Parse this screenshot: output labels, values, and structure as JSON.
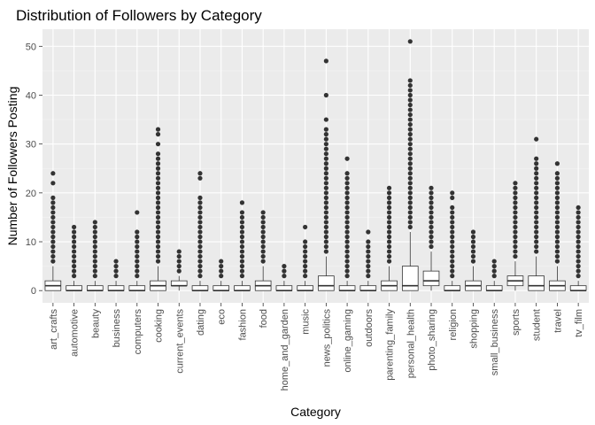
{
  "chart_data": {
    "type": "boxplot",
    "title": "Distribution of Followers by Category",
    "xlabel": "Category",
    "ylabel": "Number of Followers Posting",
    "ylim": [
      -2.5,
      53.5
    ],
    "yticks": [
      0,
      10,
      20,
      30,
      40,
      50
    ],
    "grid": true,
    "colors": {
      "panel": "#ebebeb",
      "grid_major": "#ffffff",
      "grid_minor": "#f5f5f5",
      "box_fill": "#ffffff",
      "box_stroke": "#333333",
      "outlier": "#333333"
    },
    "categories": [
      {
        "name": "art_crafts",
        "q1": 0,
        "median": 1,
        "q3": 2,
        "whisker_low": 0,
        "whisker_high": 5,
        "outliers": [
          6,
          7,
          8,
          9,
          10,
          11,
          12,
          13,
          14,
          15,
          16,
          17,
          18,
          19,
          22,
          24
        ]
      },
      {
        "name": "automotive",
        "q1": 0,
        "median": 0,
        "q3": 1,
        "whisker_low": 0,
        "whisker_high": 2,
        "outliers": [
          3,
          4,
          5,
          6,
          7,
          8,
          9,
          10,
          11,
          12,
          13
        ]
      },
      {
        "name": "beauty",
        "q1": 0,
        "median": 0,
        "q3": 1,
        "whisker_low": 0,
        "whisker_high": 2,
        "outliers": [
          3,
          4,
          5,
          6,
          7,
          8,
          9,
          10,
          11,
          12,
          13,
          14
        ]
      },
      {
        "name": "business",
        "q1": 0,
        "median": 0,
        "q3": 1,
        "whisker_low": 0,
        "whisker_high": 2,
        "outliers": [
          3,
          4,
          5,
          6
        ]
      },
      {
        "name": "computers",
        "q1": 0,
        "median": 0,
        "q3": 1,
        "whisker_low": 0,
        "whisker_high": 2,
        "outliers": [
          3,
          4,
          5,
          6,
          7,
          8,
          9,
          10,
          11,
          12,
          16
        ]
      },
      {
        "name": "cooking",
        "q1": 0,
        "median": 1,
        "q3": 2,
        "whisker_low": 0,
        "whisker_high": 5,
        "outliers": [
          6,
          7,
          8,
          9,
          10,
          11,
          12,
          13,
          14,
          15,
          16,
          17,
          18,
          19,
          20,
          21,
          22,
          23,
          24,
          25,
          26,
          27,
          28,
          30,
          32,
          33
        ]
      },
      {
        "name": "current_events",
        "q1": 1,
        "median": 1,
        "q3": 2,
        "whisker_low": 0,
        "whisker_high": 3,
        "outliers": [
          4,
          5,
          6,
          7,
          8
        ]
      },
      {
        "name": "dating",
        "q1": 0,
        "median": 0,
        "q3": 1,
        "whisker_low": 0,
        "whisker_high": 2,
        "outliers": [
          3,
          4,
          5,
          6,
          7,
          8,
          9,
          10,
          11,
          12,
          13,
          14,
          15,
          16,
          17,
          18,
          19,
          23,
          24
        ]
      },
      {
        "name": "eco",
        "q1": 0,
        "median": 0,
        "q3": 1,
        "whisker_low": 0,
        "whisker_high": 2,
        "outliers": [
          3,
          4,
          5,
          6
        ]
      },
      {
        "name": "fashion",
        "q1": 0,
        "median": 0,
        "q3": 1,
        "whisker_low": 0,
        "whisker_high": 2,
        "outliers": [
          3,
          4,
          5,
          6,
          7,
          8,
          9,
          10,
          11,
          12,
          13,
          14,
          15,
          16,
          18
        ]
      },
      {
        "name": "food",
        "q1": 0,
        "median": 1,
        "q3": 2,
        "whisker_low": 0,
        "whisker_high": 5,
        "outliers": [
          6,
          7,
          8,
          9,
          10,
          11,
          12,
          13,
          14,
          15,
          16
        ]
      },
      {
        "name": "home_and_garden",
        "q1": 0,
        "median": 0,
        "q3": 1,
        "whisker_low": 0,
        "whisker_high": 2,
        "outliers": [
          3,
          4,
          5
        ]
      },
      {
        "name": "music",
        "q1": 0,
        "median": 0,
        "q3": 1,
        "whisker_low": 0,
        "whisker_high": 2,
        "outliers": [
          3,
          4,
          5,
          6,
          7,
          8,
          9,
          10,
          13
        ]
      },
      {
        "name": "news_politics",
        "q1": 0,
        "median": 1,
        "q3": 3,
        "whisker_low": 0,
        "whisker_high": 7,
        "outliers": [
          8,
          9,
          10,
          11,
          12,
          13,
          14,
          15,
          16,
          17,
          18,
          19,
          20,
          21,
          22,
          23,
          24,
          25,
          26,
          27,
          28,
          29,
          30,
          31,
          32,
          33,
          35,
          40,
          47
        ]
      },
      {
        "name": "online_gaming",
        "q1": 0,
        "median": 0,
        "q3": 1,
        "whisker_low": 0,
        "whisker_high": 2,
        "outliers": [
          3,
          4,
          5,
          6,
          7,
          8,
          9,
          10,
          11,
          12,
          13,
          14,
          15,
          16,
          17,
          18,
          19,
          20,
          21,
          22,
          23,
          24,
          27
        ]
      },
      {
        "name": "outdoors",
        "q1": 0,
        "median": 0,
        "q3": 1,
        "whisker_low": 0,
        "whisker_high": 2,
        "outliers": [
          3,
          4,
          5,
          6,
          7,
          8,
          9,
          10,
          12
        ]
      },
      {
        "name": "parenting_family",
        "q1": 0,
        "median": 1,
        "q3": 2,
        "whisker_low": 0,
        "whisker_high": 5,
        "outliers": [
          6,
          7,
          8,
          9,
          10,
          11,
          12,
          13,
          14,
          15,
          16,
          17,
          18,
          19,
          20,
          21
        ]
      },
      {
        "name": "personal_health",
        "q1": 0,
        "median": 1,
        "q3": 5,
        "whisker_low": 0,
        "whisker_high": 12,
        "outliers": [
          13,
          14,
          15,
          16,
          17,
          18,
          19,
          20,
          21,
          22,
          23,
          24,
          25,
          26,
          27,
          28,
          29,
          30,
          31,
          32,
          33,
          34,
          35,
          36,
          37,
          38,
          39,
          40,
          41,
          42,
          43,
          51
        ]
      },
      {
        "name": "photo_sharing",
        "q1": 1,
        "median": 2,
        "q3": 4,
        "whisker_low": 0,
        "whisker_high": 8,
        "outliers": [
          9,
          10,
          11,
          12,
          13,
          14,
          15,
          16,
          17,
          18,
          19,
          20,
          21
        ]
      },
      {
        "name": "religion",
        "q1": 0,
        "median": 0,
        "q3": 1,
        "whisker_low": 0,
        "whisker_high": 2,
        "outliers": [
          3,
          4,
          5,
          6,
          7,
          8,
          9,
          10,
          11,
          12,
          13,
          14,
          15,
          16,
          17,
          19,
          20
        ]
      },
      {
        "name": "shopping",
        "q1": 0,
        "median": 1,
        "q3": 2,
        "whisker_low": 0,
        "whisker_high": 5,
        "outliers": [
          6,
          7,
          8,
          9,
          10,
          11,
          12
        ]
      },
      {
        "name": "small_business",
        "q1": 0,
        "median": 0,
        "q3": 1,
        "whisker_low": 0,
        "whisker_high": 2,
        "outliers": [
          3,
          4,
          5,
          6
        ]
      },
      {
        "name": "sports",
        "q1": 1,
        "median": 2,
        "q3": 3,
        "whisker_low": 0,
        "whisker_high": 6,
        "outliers": [
          7,
          8,
          9,
          10,
          11,
          12,
          13,
          14,
          15,
          16,
          17,
          18,
          19,
          20,
          21,
          22
        ]
      },
      {
        "name": "student",
        "q1": 0,
        "median": 1,
        "q3": 3,
        "whisker_low": 0,
        "whisker_high": 7,
        "outliers": [
          8,
          9,
          10,
          11,
          12,
          13,
          14,
          15,
          16,
          17,
          18,
          19,
          20,
          21,
          22,
          23,
          24,
          25,
          26,
          27,
          31
        ]
      },
      {
        "name": "travel",
        "q1": 0,
        "median": 1,
        "q3": 2,
        "whisker_low": 0,
        "whisker_high": 5,
        "outliers": [
          6,
          7,
          8,
          9,
          10,
          11,
          12,
          13,
          14,
          15,
          16,
          17,
          18,
          19,
          20,
          21,
          22,
          23,
          24,
          26
        ]
      },
      {
        "name": "tv_film",
        "q1": 0,
        "median": 0,
        "q3": 1,
        "whisker_low": 0,
        "whisker_high": 2,
        "outliers": [
          3,
          4,
          5,
          6,
          7,
          8,
          9,
          10,
          11,
          12,
          13,
          14,
          15,
          16,
          17
        ]
      }
    ]
  }
}
